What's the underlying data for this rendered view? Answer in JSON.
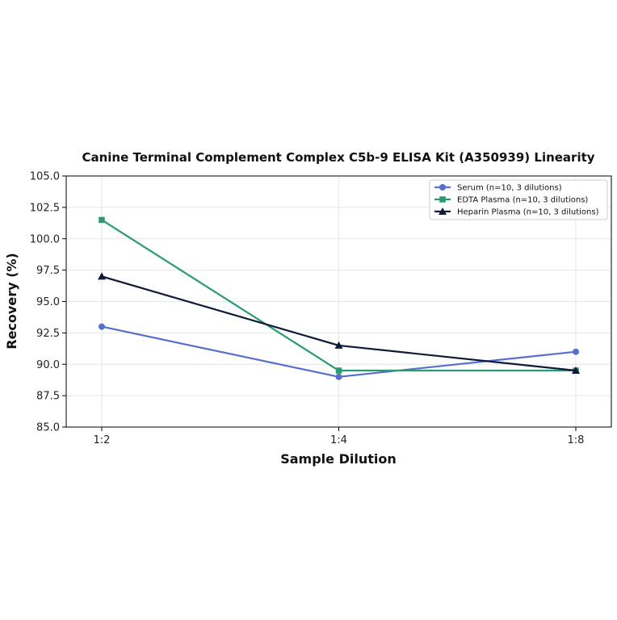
{
  "chart_data": {
    "type": "line",
    "title": "Canine Terminal Complement Complex C5b-9 ELISA Kit (A350939) Linearity",
    "xlabel": "Sample Dilution",
    "ylabel": "Recovery (%)",
    "categories": [
      "1:2",
      "1:4",
      "1:8"
    ],
    "ylim": [
      85.0,
      105.0
    ],
    "yticks": [
      "85.0",
      "87.5",
      "90.0",
      "92.5",
      "95.0",
      "97.5",
      "100.0",
      "102.5",
      "105.0"
    ],
    "grid": true,
    "legend_position": "top-right",
    "series": [
      {
        "name": "Serum (n=10, 3 dilutions)",
        "values": [
          93.0,
          89.0,
          91.0
        ],
        "color": "#5470cc",
        "marker": "circle"
      },
      {
        "name": "EDTA Plasma (n=10, 3 dilutions)",
        "values": [
          101.5,
          89.5,
          89.5
        ],
        "color": "#2a9a74",
        "marker": "square"
      },
      {
        "name": "Heparin Plasma (n=10, 3 dilutions)",
        "values": [
          97.0,
          91.5,
          89.5
        ],
        "color": "#0f1a3a",
        "marker": "triangle"
      }
    ]
  }
}
